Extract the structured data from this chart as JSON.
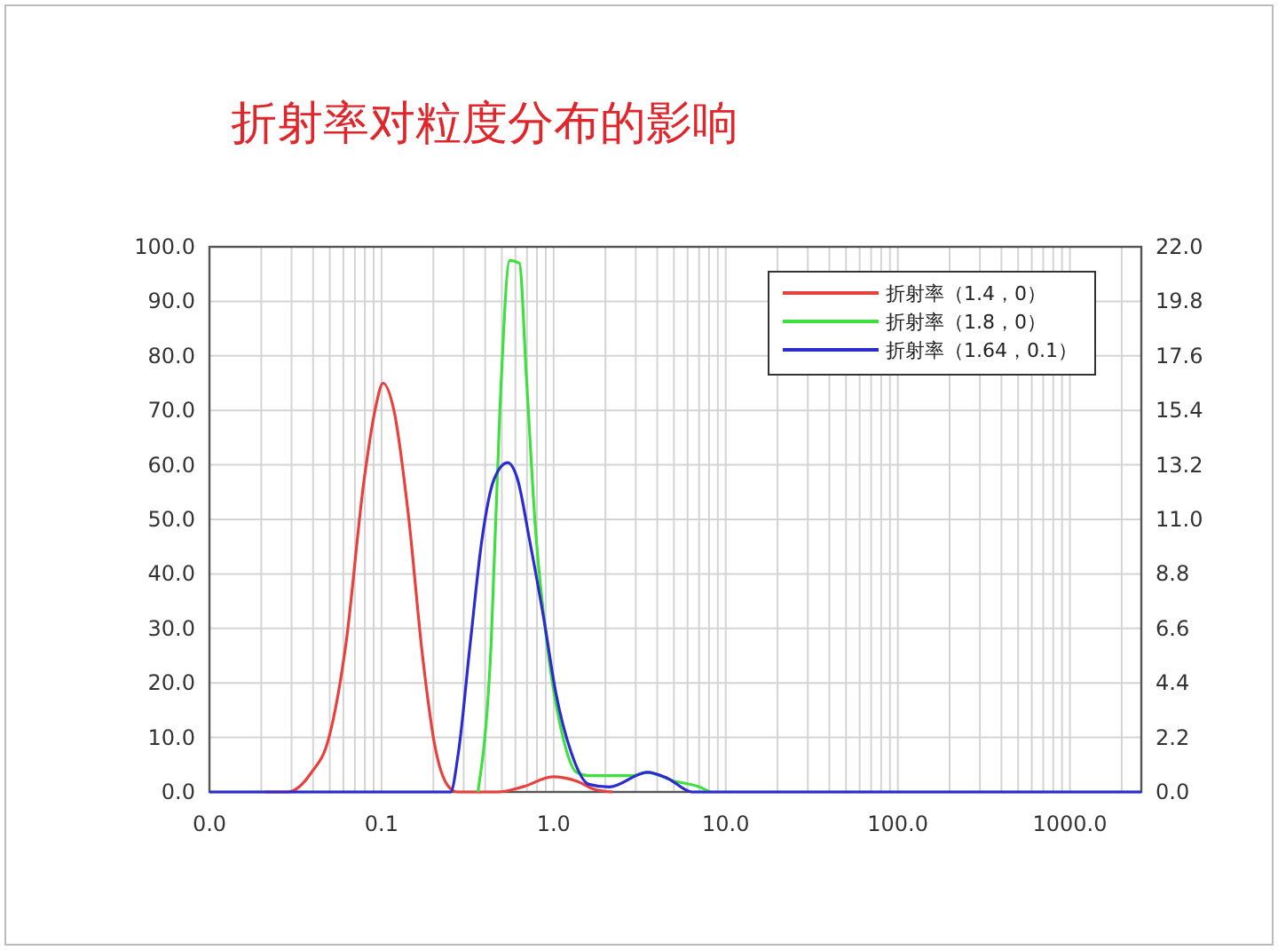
{
  "chart_data": {
    "type": "line",
    "title": "折射率对粒度分布的影响",
    "log": "x",
    "grid": true,
    "legend": "top right",
    "xlim": [
      0.01,
      2600
    ],
    "xticks": [
      {
        "value": 0.01,
        "label": "0.0"
      },
      {
        "value": 0.1,
        "label": "0.1"
      },
      {
        "value": 1,
        "label": "1.0"
      },
      {
        "value": 10,
        "label": "10.0"
      },
      {
        "value": 100,
        "label": "100.0"
      },
      {
        "value": 1000,
        "label": "1000.0"
      }
    ],
    "ylim": [
      0,
      100
    ],
    "yticks": [
      {
        "value": 0,
        "label": "0.0"
      },
      {
        "value": 10,
        "label": "10.0"
      },
      {
        "value": 20,
        "label": "20.0"
      },
      {
        "value": 30,
        "label": "30.0"
      },
      {
        "value": 40,
        "label": "40.0"
      },
      {
        "value": 50,
        "label": "50.0"
      },
      {
        "value": 60,
        "label": "60.0"
      },
      {
        "value": 70,
        "label": "70.0"
      },
      {
        "value": 80,
        "label": "80.0"
      },
      {
        "value": 90,
        "label": "90.0"
      },
      {
        "value": 100,
        "label": "100.0"
      }
    ],
    "y2lim": [
      0,
      22
    ],
    "y2ticks": [
      {
        "value": 0,
        "label": "0.0"
      },
      {
        "value": 2.2,
        "label": "2.2"
      },
      {
        "value": 4.4,
        "label": "4.4"
      },
      {
        "value": 6.6,
        "label": "6.6"
      },
      {
        "value": 8.8,
        "label": "8.8"
      },
      {
        "value": 11,
        "label": "11.0"
      },
      {
        "value": 13.2,
        "label": "13.2"
      },
      {
        "value": 15.4,
        "label": "15.4"
      },
      {
        "value": 17.6,
        "label": "17.6"
      },
      {
        "value": 19.8,
        "label": "19.8"
      },
      {
        "value": 22,
        "label": "22.0"
      }
    ],
    "series": [
      {
        "name": "折射率（1.4，0）",
        "color": "#e8403c",
        "x": [
          0.021,
          0.0285,
          0.039,
          0.049,
          0.062,
          0.079,
          0.093,
          0.102,
          0.118,
          0.143,
          0.173,
          0.204,
          0.245,
          0.277,
          0.47,
          0.67,
          0.99,
          1.36,
          1.72,
          2.2
        ],
        "values": [
          0,
          0,
          3.5,
          9.5,
          27,
          57,
          71,
          75,
          70,
          51,
          25,
          8.5,
          1,
          0,
          0,
          1,
          2.8,
          2,
          0.5,
          0
        ]
      },
      {
        "name": "折射率（1.8，0）",
        "color": "#3ee03e",
        "x": [
          0.363,
          0.433,
          0.487,
          0.556,
          0.632,
          0.695,
          0.783,
          0.917,
          1.12,
          1.36,
          1.6,
          2.89,
          3.5,
          5.0,
          6.9,
          8.1
        ],
        "values": [
          0,
          27,
          70,
          97.5,
          97,
          76,
          48.6,
          27,
          10.7,
          3.6,
          3,
          3,
          3.6,
          2,
          1,
          0
        ]
      },
      {
        "name": "折射率（1.64，0.1）",
        "color": "#2b2bd0",
        "x": [
          0.01,
          0.252,
          0.279,
          0.327,
          0.384,
          0.45,
          0.54,
          0.618,
          0.722,
          0.882,
          1.03,
          1.26,
          1.6,
          2.1,
          3.5,
          4.6,
          6.4,
          2600
        ],
        "values": [
          0,
          0,
          7,
          27,
          46.5,
          57.3,
          60.4,
          57.3,
          46.5,
          31.3,
          18.2,
          7.4,
          1.4,
          0.9,
          3.6,
          2.5,
          0,
          0
        ]
      }
    ]
  }
}
